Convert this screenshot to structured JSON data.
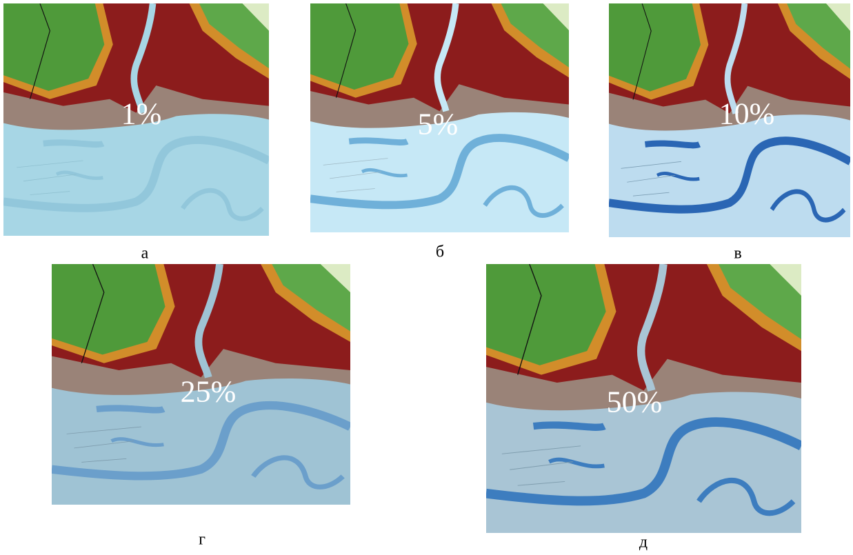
{
  "panels": [
    {
      "label": "1%",
      "caption": "а"
    },
    {
      "label": "5%",
      "caption": "б"
    },
    {
      "label": "10%",
      "caption": "в"
    },
    {
      "label": "25%",
      "caption": "г"
    },
    {
      "label": "50%",
      "caption": "д"
    }
  ]
}
